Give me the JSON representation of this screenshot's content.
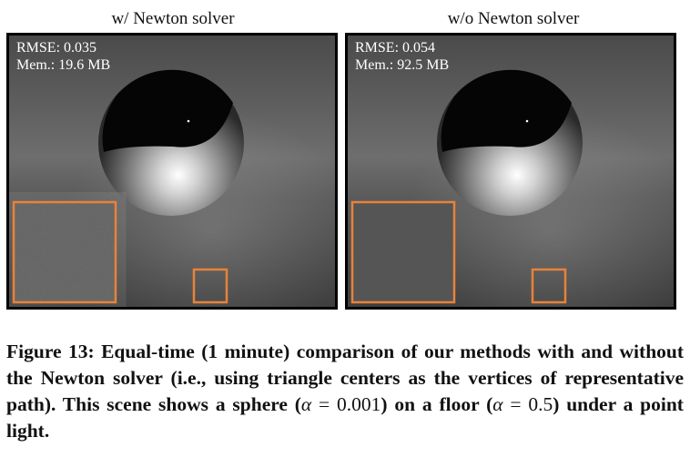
{
  "panels": [
    {
      "title": "w/ Newton solver",
      "rmse": "RMSE: 0.035",
      "mem": "Mem.: 19.6 MB",
      "noise": "low"
    },
    {
      "title": "w/o Newton solver",
      "rmse": "RMSE: 0.054",
      "mem": "Mem.: 92.5 MB",
      "noise": "high"
    }
  ],
  "colors": {
    "inset_border": "#e8823a",
    "frame": "#000000"
  },
  "caption": {
    "label": "Figure 13:",
    "text1": "Equal-time (1 minute) comparison of our methods with and without the Newton solver (i.e., using triangle centers as the vertices of representative path). This scene shows a sphere (",
    "alpha_symbol": "α",
    "eq": " = ",
    "alpha1": "0.001",
    "text2": ") on a floor (",
    "alpha2": "0.5",
    "text3": ") under a point light."
  }
}
